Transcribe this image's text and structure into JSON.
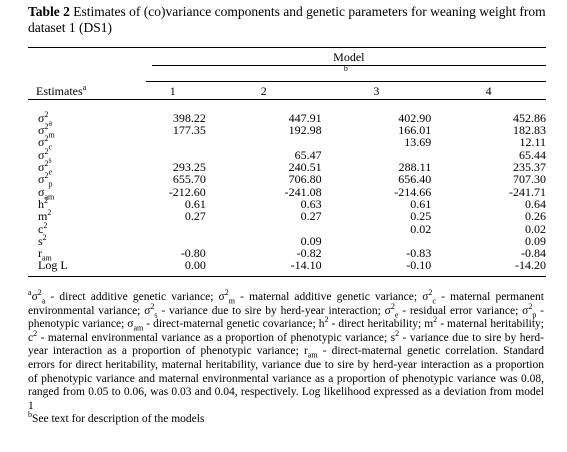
{
  "caption": {
    "label": "Table 2",
    "text": "Estimates of (co)variance components and genetic parameters for weaning weight from dataset 1 (DS1)"
  },
  "table": {
    "group_header": {
      "text": "Model",
      "sup": "b"
    },
    "row_header": {
      "text": "Estimates",
      "sup": "a"
    },
    "columns": [
      "1",
      "2",
      "3",
      "4"
    ],
    "rows": [
      {
        "label": {
          "base": "σ",
          "sup": "2",
          "sub": "a"
        },
        "cells": [
          "398.22",
          "447.91",
          "402.90",
          "452.86"
        ]
      },
      {
        "label": {
          "base": "σ",
          "sup": "2",
          "sub": "m"
        },
        "cells": [
          "177.35",
          "192.98",
          "166.01",
          "182.83"
        ]
      },
      {
        "label": {
          "base": "σ",
          "sup": "2",
          "sub": "c"
        },
        "cells": [
          null,
          null,
          "13.69",
          "12.11"
        ]
      },
      {
        "label": {
          "base": "σ",
          "sup": "2",
          "sub": "s"
        },
        "cells": [
          null,
          "65.47",
          null,
          "65.44"
        ]
      },
      {
        "label": {
          "base": "σ",
          "sup": "2",
          "sub": "e"
        },
        "cells": [
          "293.25",
          "240.51",
          "288.11",
          "235.37"
        ]
      },
      {
        "label": {
          "base": "σ",
          "sup": "2",
          "sub": "p"
        },
        "cells": [
          "655.70",
          "706.80",
          "656.40",
          "707.30"
        ]
      },
      {
        "label": {
          "base": "σ",
          "sub": "am"
        },
        "cells": [
          "-212.60",
          "-241.08",
          "-214.66",
          "-241.71"
        ]
      },
      {
        "label": {
          "base": "h",
          "sup": "2"
        },
        "cells": [
          "0.61",
          "0.63",
          "0.61",
          "0.64"
        ]
      },
      {
        "label": {
          "base": "m",
          "sup": "2"
        },
        "cells": [
          "0.27",
          "0.27",
          "0.25",
          "0.26"
        ]
      },
      {
        "label": {
          "base": "c",
          "sup": "2"
        },
        "cells": [
          null,
          null,
          "0.02",
          "0.02"
        ]
      },
      {
        "label": {
          "base": "s",
          "sup": "2"
        },
        "cells": [
          null,
          "0.09",
          null,
          "0.09"
        ]
      },
      {
        "label": {
          "base": "r",
          "sub": "am"
        },
        "cells": [
          "-0.80",
          "-0.82",
          "-0.83",
          "-0.84"
        ]
      },
      {
        "label": {
          "base": "Log L"
        },
        "cells": [
          "0.00",
          "-14.10",
          "-0.10",
          "-14.20"
        ]
      }
    ]
  },
  "footnotes": [
    {
      "marker": "a",
      "segments": [
        {
          "base": "σ",
          "sup": "2",
          "sub": "a"
        },
        " - direct additive genetic variance; ",
        {
          "base": "σ",
          "sup": "2",
          "sub": "m"
        },
        " - maternal additive genetic variance; ",
        {
          "base": "σ",
          "sup": "2",
          "sub": "c"
        },
        " - maternal permanent environmental variance; ",
        {
          "base": "σ",
          "sup": "2",
          "sub": "s"
        },
        " - variance due to sire by herd-year interaction; ",
        {
          "base": "σ",
          "sup": "2",
          "sub": "e"
        },
        " - residual error variance; ",
        {
          "base": "σ",
          "sup": "2",
          "sub": "p"
        },
        " - phenotypic variance; ",
        {
          "base": "σ",
          "sub": "am"
        },
        " - direct-maternal genetic covariance; ",
        {
          "base": "h",
          "sup": "2"
        },
        " - direct heritability; ",
        {
          "base": "m",
          "sup": "2"
        },
        " - maternal heritability; ",
        {
          "base": "c",
          "sup": "2"
        },
        " - maternal environmental variance as a proportion of phenotypic variance; ",
        {
          "base": "s",
          "sup": "2"
        },
        " - variance due to sire by herd-year interaction as a proportion of phenotypic variance; ",
        {
          "base": "r",
          "sub": "am"
        },
        " - direct-maternal genetic correlation. Standard errors for direct heritability, maternal heritability, variance due to sire by herd-year interaction as a proportion of phenotypic variance and maternal environmental variance as a proportion of phenotypic variance was 0.08, ranged from 0.05 to 0.06, was 0.03 and 0.04, respectively. Log likelihood expressed as a deviation from model 1"
      ]
    },
    {
      "marker": "b",
      "segments": [
        "See text for description of the models"
      ]
    }
  ]
}
